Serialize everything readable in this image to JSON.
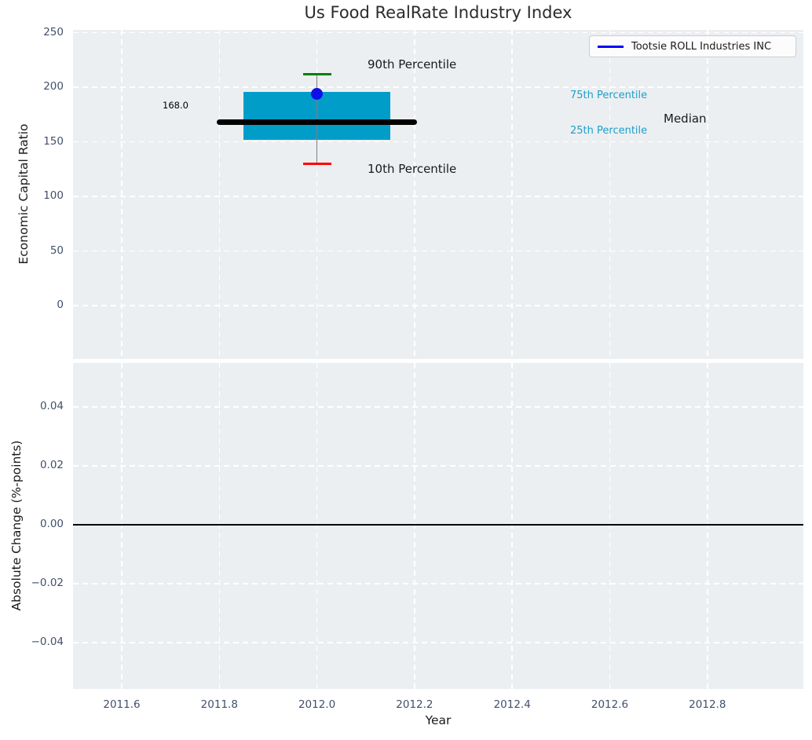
{
  "colors": {
    "figure_bg": "#ffffff",
    "axes_bg": "#eceff1",
    "grid": "#ffffff",
    "tick_text": "#42506a",
    "text": "#1a1a1a",
    "box_fill": "#009dc9",
    "median_line": "#000000",
    "whisker": "#808080",
    "cap_90th": "#008000",
    "cap_10th": "#ff0000",
    "company_dot": "#0f0fe8",
    "legend_line": "#0000ff",
    "percentile_label": "#1d9fc9",
    "zero_line": "#000000"
  },
  "chart_data": [
    {
      "type": "box",
      "title": "Us Food RealRate Industry Index",
      "ylabel": "Economic Capital Ratio",
      "ylim": [
        -48,
        253
      ],
      "grid": true,
      "yticks": {
        "values": [
          250,
          200,
          150,
          100,
          50,
          0
        ],
        "labels": [
          "250",
          "200",
          "150",
          "100",
          "50",
          "0"
        ]
      },
      "box": {
        "x": 2012.0,
        "p90": 212,
        "p75": 196,
        "median": 168,
        "p25": 152,
        "p10": 130,
        "box_halfwidth": 0.15,
        "median_halfwidth": 0.2,
        "median_label": "168.0"
      },
      "series": [
        {
          "name": "Tootsie ROLL Industries INC",
          "x": 2012.0,
          "value": 194
        }
      ],
      "annotations": {
        "p90": "90th Percentile",
        "p10": "10th Percentile",
        "p75": "75th Percentile",
        "p25": "25th Percentile",
        "median": "Median"
      },
      "legend": {
        "position": "upper right",
        "entries": [
          {
            "label": "Tootsie ROLL Industries INC",
            "color": "#0000ff"
          }
        ]
      }
    },
    {
      "type": "line",
      "ylabel": "Absolute Change (%-points)",
      "xlabel": "Year",
      "ylim": [
        -0.055,
        0.055
      ],
      "grid": true,
      "zero_line": 0.0,
      "yticks": {
        "values": [
          0.04,
          0.02,
          0.0,
          -0.02,
          -0.04
        ],
        "labels": [
          "0.04",
          "0.02",
          "0.00",
          "−0.02",
          "−0.04"
        ]
      },
      "xticks": {
        "values": [
          2011.6,
          2011.8,
          2012.0,
          2012.2,
          2012.4,
          2012.6,
          2012.8
        ],
        "labels": [
          "2011.6",
          "2011.8",
          "2012.0",
          "2012.2",
          "2012.4",
          "2012.6",
          "2012.8"
        ]
      },
      "xlim": [
        2011.5,
        2013.0
      ],
      "series": []
    }
  ]
}
